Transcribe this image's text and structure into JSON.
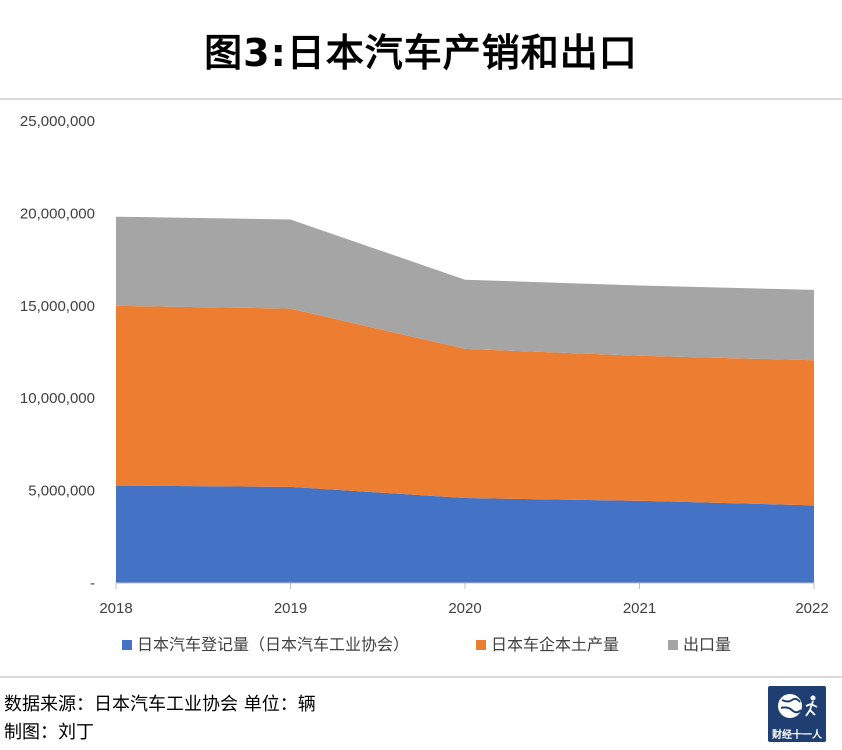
{
  "title": "图3:日本汽车产销和出口",
  "footer": {
    "source": "数据来源：日本汽车工业协会  单位：辆",
    "author": "制图：刘丁"
  },
  "logo": {
    "text": "财经十一人",
    "icon": "globe-runner-icon"
  },
  "colors": {
    "series1": "#4472c4",
    "series2": "#ed7d31",
    "series3": "#a5a5a5",
    "axis": "#bfbfbf"
  },
  "chart_data": {
    "type": "area",
    "stacked": true,
    "title": "图3:日本汽车产销和出口",
    "xlabel": "",
    "ylabel": "",
    "x": [
      "2018",
      "2019",
      "2020",
      "2021",
      "2022"
    ],
    "ylim": [
      0,
      25000000
    ],
    "yticks": [
      0,
      5000000,
      10000000,
      15000000,
      20000000,
      25000000
    ],
    "ytick_labels": [
      "-",
      "5,000,000",
      "10,000,000",
      "15,000,000",
      "20,000,000",
      "25,000,000"
    ],
    "grid": false,
    "legend_position": "bottom",
    "series": [
      {
        "name": "日本汽车登记量（日本汽车工业协会）",
        "values": [
          5270000,
          5200000,
          4600000,
          4450000,
          4200000
        ]
      },
      {
        "name": "日本车企本土产量",
        "values": [
          9730000,
          9650000,
          8070000,
          7850000,
          7850000
        ]
      },
      {
        "name": "出口量",
        "values": [
          4820000,
          4820000,
          3740000,
          3800000,
          3810000
        ]
      }
    ]
  }
}
